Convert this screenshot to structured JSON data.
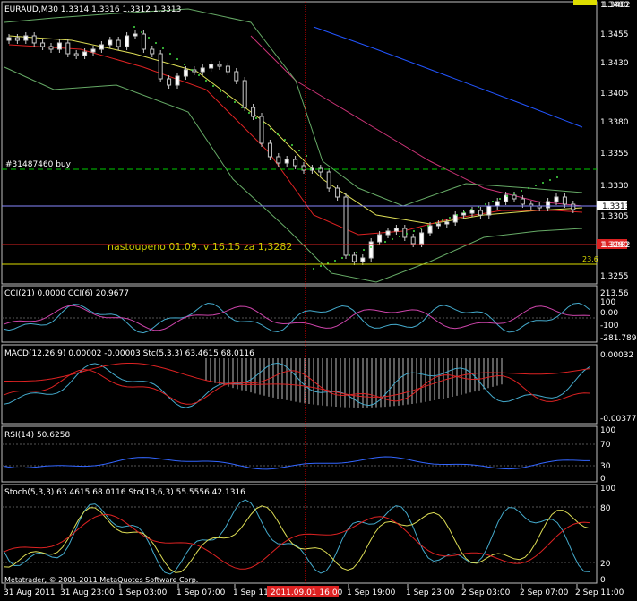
{
  "main": {
    "header": "EURAUD,M30  1.3314 1.3316 1.3312 1.3313",
    "price_axis": [
      "1.3480",
      "1.3455",
      "1.3430",
      "1.3405",
      "1.3380",
      "1.3355",
      "1.3330",
      "1.3305",
      "1.3280",
      "1.3255"
    ],
    "current_price": "1.3313",
    "order_price": "1.3282",
    "order_label": "#31487460 buy",
    "note_text": "nastoupeno 01.09. v 16.15 za 1,3282",
    "level_value": "23.6",
    "top_right_value": "1.3482"
  },
  "cci": {
    "header": "CCI(21) 0.0000  CCI(6) 20.9677",
    "axis": [
      "213.56",
      "100",
      "0.00",
      "-100",
      "-281.7899"
    ]
  },
  "macd": {
    "header": "MACD(12,26,9) 0.00002 -0.00003  Stc(5,3,3) 63.4615 68.0116",
    "axis": [
      "0.00032",
      "-0.00377"
    ]
  },
  "rsi": {
    "header": "RSI(14) 50.6258",
    "axis": [
      "100",
      "70",
      "30",
      "0"
    ]
  },
  "stoch": {
    "header": "Stoch(5,3,3) 63.4615 68.0116  Sto(18,6,3) 55.5556 42.1316",
    "axis": [
      "100",
      "80",
      "20",
      "0"
    ],
    "copyright": "Metatrader, © 2001-2011 MetaQuotes Software Corp."
  },
  "time_axis": [
    "31 Aug 2011",
    "31 Aug 23:00",
    "1 Sep 03:00",
    "1 Sep 07:00",
    "1 Sep 11:00",
    "1 Sep 19:00",
    "1 Sep 23:00",
    "2 Sep 03:00",
    "2 Sep 07:00",
    "2 Sep 11:00"
  ],
  "crosshair_time": "2011.09.01 16:00",
  "colors": {
    "background": "#000000",
    "grid": "#c0c0c0",
    "axis_text": "#ffffff",
    "bull_candle": "#ffffff",
    "bear_candle": "#000000",
    "bollinger": "#66aa66",
    "ma_blue": "#2255ff",
    "ma_magenta": "#cc3377",
    "ma_red": "#dd2222",
    "ma_yellow": "#dddd55",
    "order_line": "#00cc00",
    "current_line": "#8888ff",
    "crosshair": "#ff0000",
    "note_text": "#cccc00"
  }
}
